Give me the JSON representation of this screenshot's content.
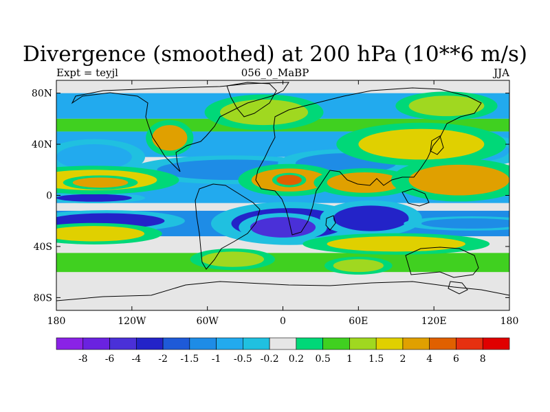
{
  "chart_data": {
    "type": "heatmap",
    "title": "Divergence (smoothed) at 200 hPa (10**6 m/s)",
    "subtitle_left": "Expt = teyjl",
    "subtitle_center": "056_0_MaBP",
    "subtitle_right": "JJA",
    "x_range": [
      -180,
      180
    ],
    "y_range": [
      -90,
      90
    ],
    "x_ticks": [
      {
        "value": -180,
        "label": "180"
      },
      {
        "value": -120,
        "label": "120W"
      },
      {
        "value": -60,
        "label": "60W"
      },
      {
        "value": 0,
        "label": "0"
      },
      {
        "value": 60,
        "label": "60E"
      },
      {
        "value": 120,
        "label": "120E"
      },
      {
        "value": 180,
        "label": "180"
      }
    ],
    "y_ticks": [
      {
        "value": 80,
        "label": "80N"
      },
      {
        "value": 40,
        "label": "40N"
      },
      {
        "value": 0,
        "label": "0"
      },
      {
        "value": -40,
        "label": "40S"
      },
      {
        "value": -80,
        "label": "80S"
      }
    ],
    "colorbar_labels": [
      "-8",
      "-6",
      "-4",
      "-2",
      "-1.5",
      "-1",
      "-0.5",
      "-0.2",
      "0.2",
      "0.5",
      "1",
      "1.5",
      "2",
      "4",
      "6",
      "8"
    ],
    "colorbar_colors": [
      "#8a22e6",
      "#6a22e0",
      "#4a30d8",
      "#2323c8",
      "#1e5ad8",
      "#1e8ce6",
      "#22aaee",
      "#20c0e0",
      "#e6e6e6",
      "#00d878",
      "#40d020",
      "#a0d820",
      "#e0d000",
      "#e0a000",
      "#e06000",
      "#e63010",
      "#e00000"
    ],
    "features": [
      {
        "lon": 5,
        "lat": -22,
        "rx": 46,
        "ry": 12,
        "value": -3
      },
      {
        "lon": 0,
        "lat": -25,
        "rx": 26,
        "ry": 8,
        "value": -6
      },
      {
        "lon": 70,
        "lat": -18,
        "rx": 30,
        "ry": 10,
        "value": -3
      },
      {
        "lon": -140,
        "lat": -20,
        "rx": 46,
        "ry": 6,
        "value": -2.5
      },
      {
        "lon": -150,
        "lat": -2,
        "rx": 30,
        "ry": 3,
        "value": -3
      },
      {
        "lon": 150,
        "lat": -22,
        "rx": 40,
        "ry": 4,
        "value": -1.5
      },
      {
        "lon": -40,
        "lat": 20,
        "rx": 60,
        "ry": 8,
        "value": -1.2
      },
      {
        "lon": 50,
        "lat": 25,
        "rx": 40,
        "ry": 8,
        "value": -1.5
      },
      {
        "lon": 140,
        "lat": 35,
        "rx": 40,
        "ry": 10,
        "value": -1
      },
      {
        "lon": -150,
        "lat": 30,
        "rx": 30,
        "ry": 10,
        "value": -1
      },
      {
        "lon": -150,
        "lat": 12,
        "rx": 50,
        "ry": 8,
        "value": 1.8
      },
      {
        "lon": -145,
        "lat": 10,
        "rx": 22,
        "ry": 4,
        "value": 3.5
      },
      {
        "lon": 5,
        "lat": 12,
        "rx": 30,
        "ry": 9,
        "value": 2.5
      },
      {
        "lon": 5,
        "lat": 12,
        "rx": 10,
        "ry": 4,
        "value": 5
      },
      {
        "lon": 65,
        "lat": 10,
        "rx": 30,
        "ry": 8,
        "value": 3
      },
      {
        "lon": 140,
        "lat": 12,
        "rx": 40,
        "ry": 12,
        "value": 2.5
      },
      {
        "lon": 90,
        "lat": -38,
        "rx": 55,
        "ry": 6,
        "value": 1.8
      },
      {
        "lon": -150,
        "lat": -30,
        "rx": 40,
        "ry": 6,
        "value": 1.5
      },
      {
        "lon": 110,
        "lat": 40,
        "rx": 50,
        "ry": 12,
        "value": 1.5
      },
      {
        "lon": -15,
        "lat": 65,
        "rx": 35,
        "ry": 10,
        "value": 1.2
      },
      {
        "lon": 130,
        "lat": 70,
        "rx": 30,
        "ry": 8,
        "value": 1.3
      },
      {
        "lon": -90,
        "lat": 45,
        "rx": 14,
        "ry": 10,
        "value": 2
      },
      {
        "lon": -40,
        "lat": -50,
        "rx": 25,
        "ry": 6,
        "value": 1.2
      },
      {
        "lon": 60,
        "lat": -55,
        "rx": 20,
        "ry": 5,
        "value": 1.2
      }
    ]
  }
}
